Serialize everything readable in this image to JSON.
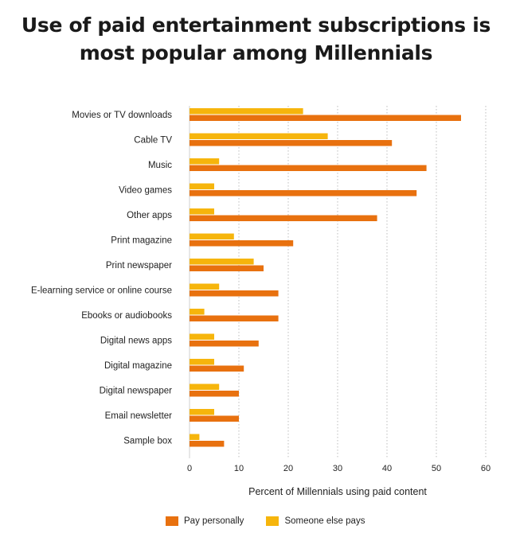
{
  "title_line1": "Use of paid entertainment subscriptions is",
  "title_line2": "most popular among Millennials",
  "chart_data": {
    "type": "bar",
    "orientation": "horizontal",
    "title": "Use of paid entertainment subscriptions is most popular among Millennials",
    "xlabel": "Percent of Millennials using paid content",
    "ylabel": "",
    "xlim": [
      0,
      60
    ],
    "xticks": [
      0,
      10,
      20,
      30,
      40,
      50,
      60
    ],
    "grid": "vertical dotted",
    "legend_position": "bottom",
    "categories": [
      "Movies or TV downloads",
      "Cable TV",
      "Music",
      "Video games",
      "Other apps",
      "Print magazine",
      "Print newspaper",
      "E-learning service or online course",
      "Ebooks or audiobooks",
      "Digital news apps",
      "Digital magazine",
      "Digital newspaper",
      "Email newsletter",
      "Sample box"
    ],
    "series": [
      {
        "name": "Pay personally",
        "color": "#e8710f",
        "values": [
          55,
          41,
          48,
          46,
          38,
          21,
          15,
          18,
          18,
          14,
          11,
          10,
          10,
          7
        ]
      },
      {
        "name": "Someone else pays",
        "color": "#f6b50c",
        "values": [
          23,
          28,
          6,
          5,
          5,
          9,
          13,
          6,
          3,
          5,
          5,
          6,
          5,
          2
        ]
      }
    ]
  }
}
